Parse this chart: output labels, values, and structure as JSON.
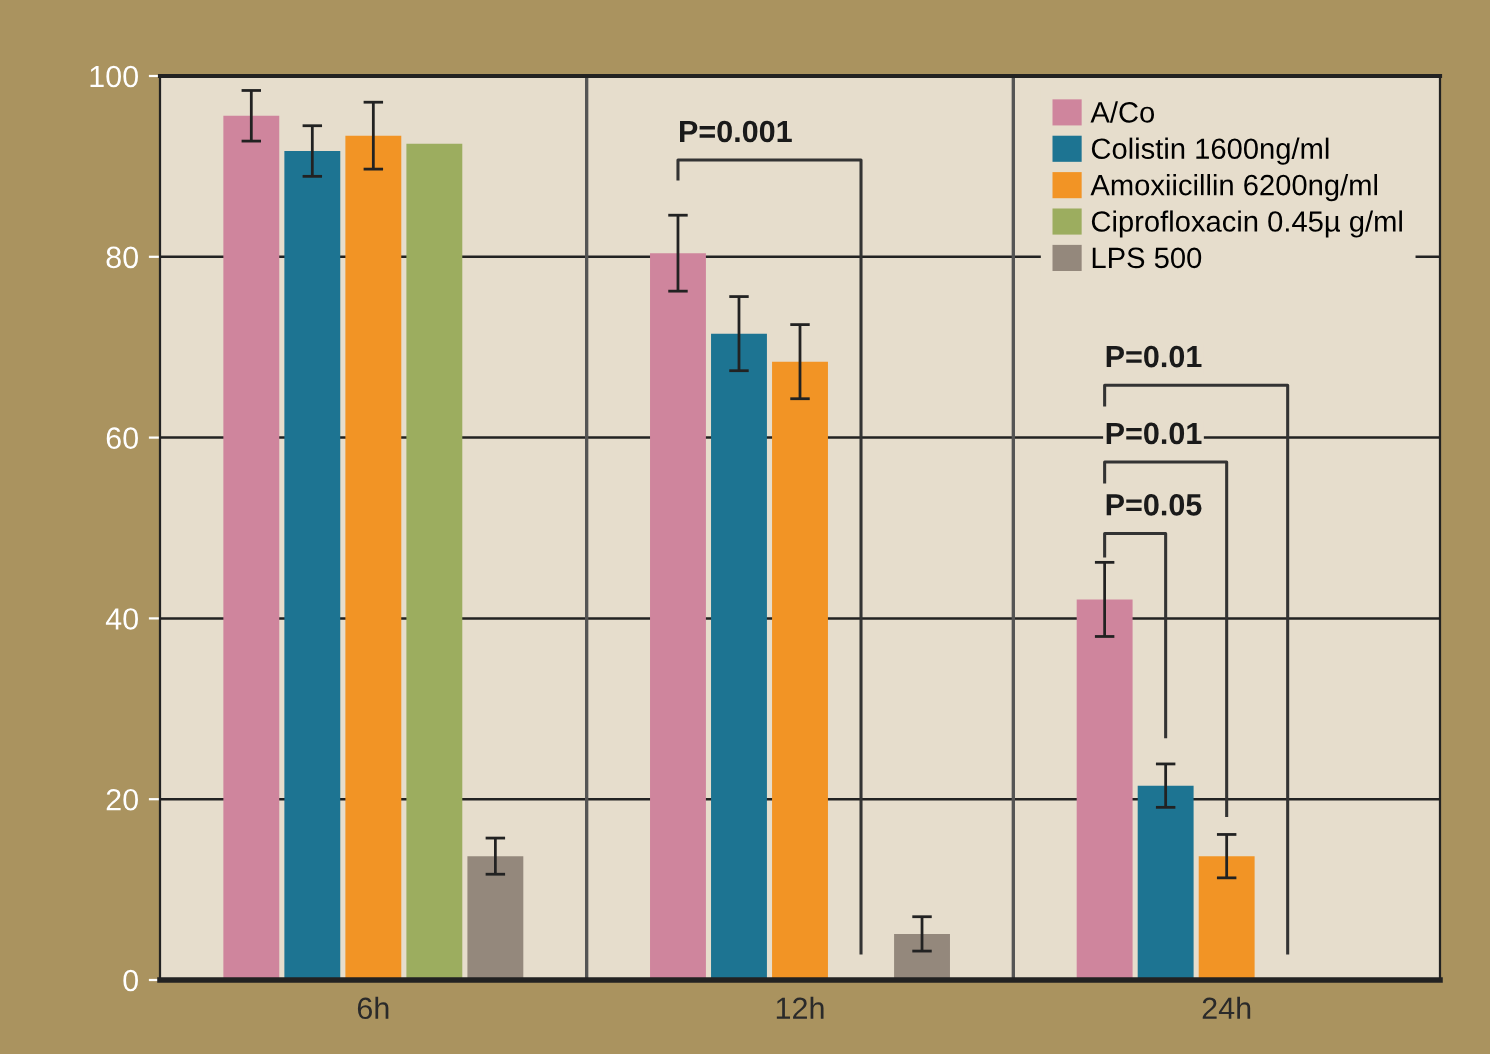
{
  "chart_data": {
    "type": "bar",
    "categories": [
      "6h",
      "12h",
      "24h"
    ],
    "series": [
      {
        "name": "A/Co",
        "color": "#cf859d",
        "values": [
          95.6,
          80.4,
          42.1
        ],
        "errors": [
          2.8,
          4.2,
          4.1
        ]
      },
      {
        "name": "Colistin 1600ng/ml",
        "color": "#1d7492",
        "values": [
          91.7,
          71.5,
          21.5
        ],
        "errors": [
          2.8,
          4.1,
          2.4
        ]
      },
      {
        "name": "Amoxiicillin 6200ng/ml",
        "color": "#f29425",
        "values": [
          93.4,
          68.4,
          13.7
        ],
        "errors": [
          3.7,
          4.1,
          2.4
        ]
      },
      {
        "name": "Ciprofloxacin 0.45µ g/ml",
        "color": "#9cad5f",
        "values": [
          92.5,
          null,
          null
        ],
        "errors": [
          null,
          null,
          null
        ]
      },
      {
        "name": "LPS 500",
        "color": "#94887c",
        "values": [
          13.7,
          5.1,
          null
        ],
        "errors": [
          2.0,
          1.9,
          null
        ]
      }
    ],
    "ylim": [
      0,
      100
    ],
    "yticks": [
      0,
      20,
      40,
      60,
      80,
      100
    ],
    "grid": true,
    "legend": "top right",
    "annotations": [
      "P=0.001",
      "P=0.05",
      "P=0.01",
      "P=0.01"
    ]
  }
}
